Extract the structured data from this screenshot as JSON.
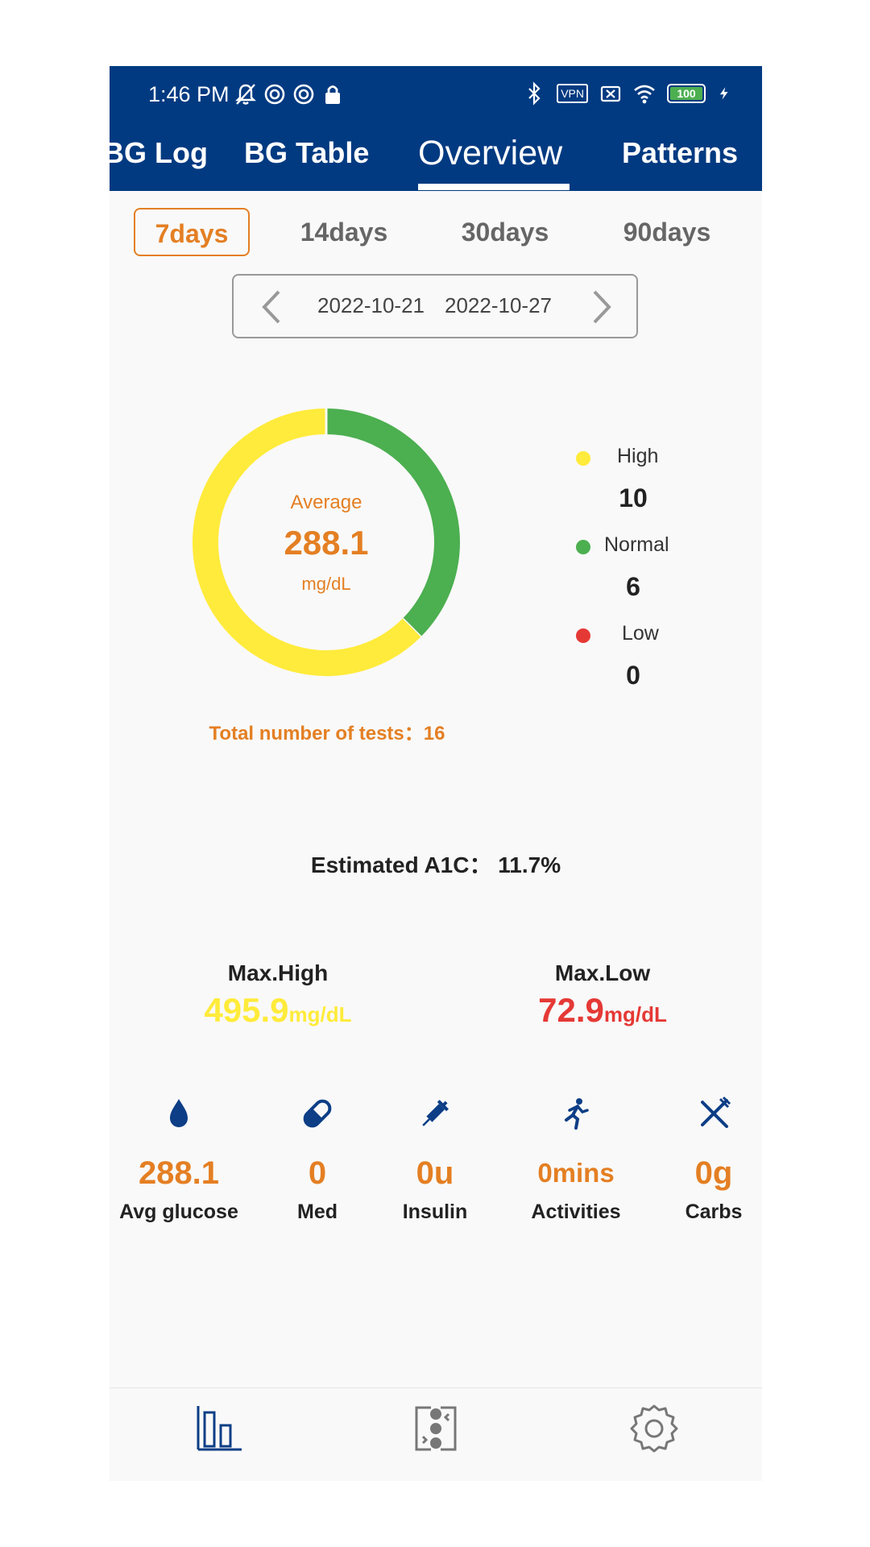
{
  "status_bar": {
    "time": "1:46 PM",
    "vpn": "VPN",
    "battery": "100",
    "icons_left": [
      "bell-off-icon",
      "record-icon",
      "record-icon",
      "lock-icon"
    ],
    "icons_right": [
      "bluetooth-icon",
      "vpn-icon",
      "sim-x-icon",
      "wifi-icon",
      "battery-icon",
      "charging-icon"
    ]
  },
  "tabs": [
    {
      "label": "BG Log",
      "active": false
    },
    {
      "label": "BG Table",
      "active": false
    },
    {
      "label": "Overview",
      "active": true
    },
    {
      "label": "Patterns",
      "active": false
    }
  ],
  "ranges": [
    {
      "label": "7days",
      "active": true
    },
    {
      "label": "14days",
      "active": false
    },
    {
      "label": "30days",
      "active": false
    },
    {
      "label": "90days",
      "active": false
    }
  ],
  "date_range": {
    "start": "2022-10-21",
    "end": "2022-10-27"
  },
  "summary": {
    "average_label": "Average",
    "average_value": "288.1",
    "average_unit": "mg/dL",
    "total_tests": "Total number of tests：16",
    "a1c": "Estimated A1C：  11.7%"
  },
  "legend": [
    {
      "label": "High",
      "value": "10",
      "color": "#ffeb3b"
    },
    {
      "label": "Normal",
      "value": "6",
      "color": "#4caf50"
    },
    {
      "label": "Low",
      "value": "0",
      "color": "#e53935"
    }
  ],
  "max": {
    "high_title": "Max.High",
    "high_value": "495.9",
    "high_unit": "mg/dL",
    "low_title": "Max.Low",
    "low_value": "72.9",
    "low_unit": "mg/dL"
  },
  "stats": [
    {
      "icon": "blood-drop-icon",
      "value": "288.1",
      "label": "Avg glucose"
    },
    {
      "icon": "pill-icon",
      "value": "0",
      "label": "Med"
    },
    {
      "icon": "syringe-icon",
      "value": "0u",
      "label": "Insulin"
    },
    {
      "icon": "running-person-icon",
      "value": "0mins",
      "label": "Activities"
    },
    {
      "icon": "fork-knife-icon",
      "value": "0g",
      "label": "Carbs"
    }
  ],
  "bottom_nav": [
    "chart-icon",
    "data-transfer-icon",
    "gear-icon"
  ],
  "colors": {
    "header": "#013a81",
    "accent": "#e47f23",
    "high": "#ffeb3b",
    "normal": "#4caf50",
    "low": "#e53935",
    "icon_blue": "#0d3e86"
  }
}
